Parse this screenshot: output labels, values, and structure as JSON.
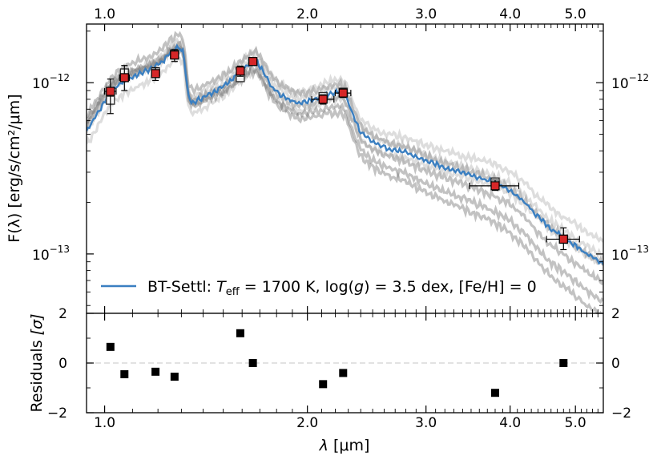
{
  "chart_data": {
    "type": "line",
    "x_ticks": [
      {
        "value": 1.0,
        "label": "1.0"
      },
      {
        "value": 2.0,
        "label": "2.0"
      },
      {
        "value": 3.0,
        "label": "3.0"
      },
      {
        "value": 4.0,
        "label": "4.0"
      },
      {
        "value": 5.0,
        "label": "5.0"
      }
    ],
    "xlim": [
      0.94,
      5.5
    ],
    "xlabel_prefix": "λ",
    "xlabel_unit": "[μm]",
    "top": {
      "ylabel": "F(λ) [erg/s/cm²/μm]",
      "ylim": [
        4.5e-14,
        2.2e-12
      ],
      "y_ticks": [
        {
          "value": 1e-12,
          "base": "10",
          "exp": "−12"
        },
        {
          "value": 1e-13,
          "base": "10",
          "exp": "−13"
        }
      ],
      "legend": {
        "location": "bottom-center",
        "prefix": "BT-Settl: ",
        "teff_symbol": "T",
        "teff_sub": "eff",
        "teff_value": " = 1700 K, log(",
        "g_symbol": "g",
        "rest": ") = 3.5 dex, [Fe/H] = 0"
      },
      "best_fit_color": "#3a7fc1",
      "point_color": "#d62728",
      "model_nodes_x": [
        0.94,
        0.98,
        1.02,
        1.06,
        1.1,
        1.14,
        1.18,
        1.22,
        1.25,
        1.27,
        1.29,
        1.31,
        1.33,
        1.35,
        1.4,
        1.45,
        1.5,
        1.55,
        1.6,
        1.64,
        1.68,
        1.72,
        1.77,
        1.82,
        1.88,
        1.94,
        2.0,
        2.06,
        2.12,
        2.18,
        2.24,
        2.28,
        2.34,
        2.4,
        2.5,
        2.6,
        2.8,
        3.0,
        3.2,
        3.5,
        3.8,
        4.0,
        4.2,
        4.4,
        4.6,
        4.8,
        5.0,
        5.2,
        5.5
      ],
      "model_nodes_y": [
        5.2e-13,
        6.8e-13,
        8.8e-13,
        1e-12,
        1.08e-12,
        1.15e-12,
        1.22e-12,
        1.33e-12,
        1.5e-12,
        1.55e-12,
        1.62e-12,
        1.48e-12,
        8.5e-13,
        7.6e-13,
        8.2e-13,
        8.8e-13,
        9.5e-13,
        1.06e-12,
        1.18e-12,
        1.28e-12,
        1.35e-12,
        1.15e-12,
        9.5e-13,
        8.6e-13,
        8e-13,
        7.6e-13,
        7.8e-13,
        8.1e-13,
        8.4e-13,
        8.7e-13,
        8.9e-13,
        8.4e-13,
        6.4e-13,
        5.1e-13,
        4.5e-13,
        4.2e-13,
        3.9e-13,
        3.5e-13,
        3.2e-13,
        2.9e-13,
        2.6e-13,
        2.35e-13,
        2e-13,
        1.65e-13,
        1.4e-13,
        1.25e-13,
        1.12e-13,
        1e-13,
        8.8e-14
      ],
      "grid_model_factors": [
        1.12,
        1.06,
        0.95,
        0.9,
        0.85,
        1.16,
        0.8
      ],
      "grid_model_slopes": [
        -0.12,
        0.05,
        -0.2,
        0.1,
        -0.35,
        0.15,
        -0.5
      ],
      "photometry": [
        {
          "x": 1.02,
          "y": 8.9e-13,
          "model_y": 7.9e-13,
          "xerr": 0.02,
          "yerr_lo": 6.6e-13,
          "yerr_hi": 1.05e-12
        },
        {
          "x": 1.07,
          "y": 1.07e-12,
          "model_y": 1.14e-12,
          "xerr": 0.018,
          "yerr_lo": 9e-13,
          "yerr_hi": 1.26e-12
        },
        {
          "x": 1.19,
          "y": 1.13e-12,
          "model_y": 1.16e-12,
          "xerr": 0.015,
          "yerr_lo": 1.03e-12,
          "yerr_hi": 1.22e-12
        },
        {
          "x": 1.27,
          "y": 1.45e-12,
          "model_y": 1.47e-12,
          "xerr": 0.015,
          "yerr_lo": 1.33e-12,
          "yerr_hi": 1.56e-12
        },
        {
          "x": 1.59,
          "y": 1.17e-12,
          "model_y": 1.07e-12,
          "xerr": 0.012,
          "yerr_lo": 1.09e-12,
          "yerr_hi": 1.25e-12
        },
        {
          "x": 1.66,
          "y": 1.33e-12,
          "model_y": 1.33e-12,
          "xerr": 0.012,
          "yerr_lo": 1.27e-12,
          "yerr_hi": 1.39e-12
        },
        {
          "x": 2.11,
          "y": 8e-13,
          "model_y": 8.3e-13,
          "xerr": 0.08,
          "yerr_lo": 7.5e-13,
          "yerr_hi": 8.5e-13
        },
        {
          "x": 2.26,
          "y": 8.7e-13,
          "model_y": 8.8e-13,
          "xerr": 0.06,
          "yerr_lo": 8.2e-13,
          "yerr_hi": 9.2e-13
        },
        {
          "x": 3.8,
          "y": 2.5e-13,
          "model_y": 2.63e-13,
          "xerr": 0.32,
          "yerr_lo": 2.35e-13,
          "yerr_hi": 2.7e-13
        },
        {
          "x": 4.8,
          "y": 1.22e-13,
          "model_y": 1.22e-13,
          "xerr": 0.27,
          "yerr_lo": 1.06e-13,
          "yerr_hi": 1.42e-13
        }
      ]
    },
    "residuals": {
      "ylabel_prefix": "Residuals ",
      "ylabel_symbol": "[σ]",
      "ylim": [
        -2,
        2
      ],
      "y_ticks": [
        {
          "value": 2,
          "label": "2"
        },
        {
          "value": 0,
          "label": "0"
        },
        {
          "value": -2,
          "label": "−2"
        }
      ],
      "points": [
        {
          "x": 1.02,
          "y": 0.65
        },
        {
          "x": 1.07,
          "y": -0.45
        },
        {
          "x": 1.19,
          "y": -0.35
        },
        {
          "x": 1.27,
          "y": -0.55
        },
        {
          "x": 1.59,
          "y": 1.2
        },
        {
          "x": 1.66,
          "y": 0.0
        },
        {
          "x": 2.11,
          "y": -0.85
        },
        {
          "x": 2.26,
          "y": -0.4
        },
        {
          "x": 3.8,
          "y": -1.2
        },
        {
          "x": 4.8,
          "y": 0.0
        }
      ]
    }
  }
}
